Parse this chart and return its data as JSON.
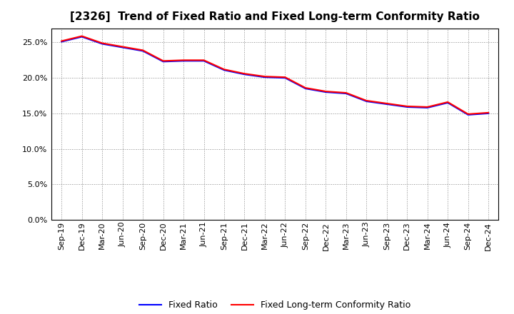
{
  "title": "[2326]  Trend of Fixed Ratio and Fixed Long-term Conformity Ratio",
  "x_labels": [
    "Sep-19",
    "Dec-19",
    "Mar-20",
    "Jun-20",
    "Sep-20",
    "Dec-20",
    "Mar-21",
    "Jun-21",
    "Sep-21",
    "Dec-21",
    "Mar-22",
    "Jun-22",
    "Sep-22",
    "Dec-22",
    "Mar-23",
    "Jun-23",
    "Sep-23",
    "Dec-23",
    "Mar-24",
    "Jun-24",
    "Sep-24",
    "Dec-24"
  ],
  "fixed_ratio": [
    0.251,
    0.258,
    0.248,
    0.243,
    0.238,
    0.223,
    0.224,
    0.224,
    0.211,
    0.205,
    0.201,
    0.2,
    0.185,
    0.18,
    0.178,
    0.167,
    0.163,
    0.159,
    0.158,
    0.165,
    0.148,
    0.15
  ],
  "fixed_lt_ratio": [
    0.252,
    0.259,
    0.249,
    0.244,
    0.239,
    0.224,
    0.225,
    0.225,
    0.212,
    0.206,
    0.202,
    0.201,
    0.186,
    0.181,
    0.179,
    0.168,
    0.164,
    0.16,
    0.159,
    0.166,
    0.149,
    0.151
  ],
  "fixed_ratio_color": "#0000ff",
  "fixed_lt_ratio_color": "#ff0000",
  "background_color": "#ffffff",
  "plot_bg_color": "#ffffff",
  "grid_color": "#888888",
  "title_fontsize": 11,
  "tick_fontsize": 8,
  "legend_fontsize": 9,
  "legend_fixed_ratio": "Fixed Ratio",
  "legend_fixed_lt_ratio": "Fixed Long-term Conformity Ratio",
  "yticks": [
    0.0,
    0.05,
    0.1,
    0.15,
    0.2,
    0.25
  ],
  "ylim": [
    0.0,
    0.27
  ],
  "line_width": 1.5
}
